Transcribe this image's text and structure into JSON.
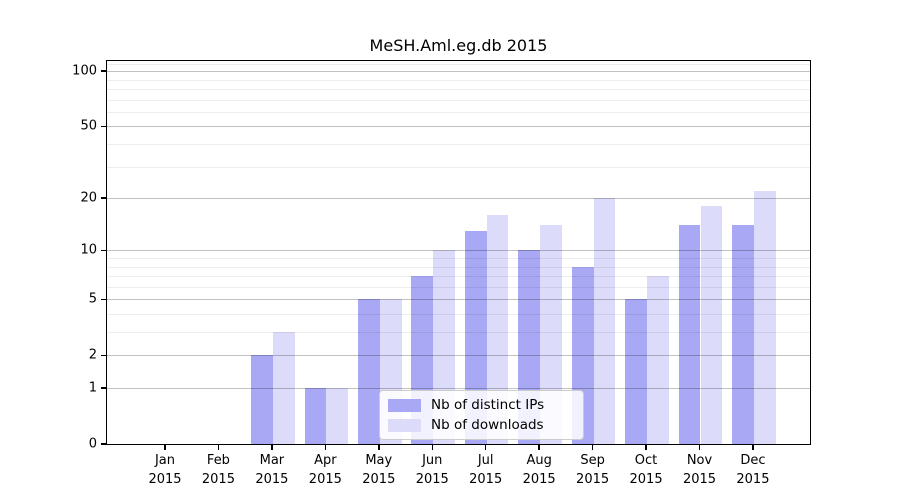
{
  "title": "MeSH.Aml.eg.db 2015",
  "chart_data": {
    "type": "bar",
    "months": [
      "Jan",
      "Feb",
      "Mar",
      "Apr",
      "May",
      "Jun",
      "Jul",
      "Aug",
      "Sep",
      "Oct",
      "Nov",
      "Dec"
    ],
    "year": "2015",
    "series": [
      {
        "name": "Nb of distinct IPs",
        "color": "#a8a8f5",
        "values": [
          0,
          0,
          2,
          1,
          5,
          7,
          13,
          10,
          8,
          5,
          14,
          14
        ]
      },
      {
        "name": "Nb of downloads",
        "color": "#dcdcfa",
        "values": [
          0,
          0,
          3,
          1,
          5,
          10,
          16,
          14,
          20,
          7,
          18,
          22
        ]
      }
    ],
    "title": "MeSH.Aml.eg.db 2015",
    "xlabel": "",
    "ylabel": "",
    "y_scale": "log1p",
    "y_ticks": [
      0,
      1,
      2,
      5,
      10,
      20,
      50,
      100
    ],
    "y_minor_ticks": [
      3,
      4,
      6,
      7,
      8,
      9,
      30,
      40,
      60,
      70,
      80,
      90,
      110
    ],
    "ylim": [
      0,
      113
    ],
    "grid": "on",
    "legend_position": "bottom-center"
  },
  "legend": {
    "items": [
      {
        "label": "Nb of distinct IPs"
      },
      {
        "label": "Nb of downloads"
      }
    ]
  }
}
